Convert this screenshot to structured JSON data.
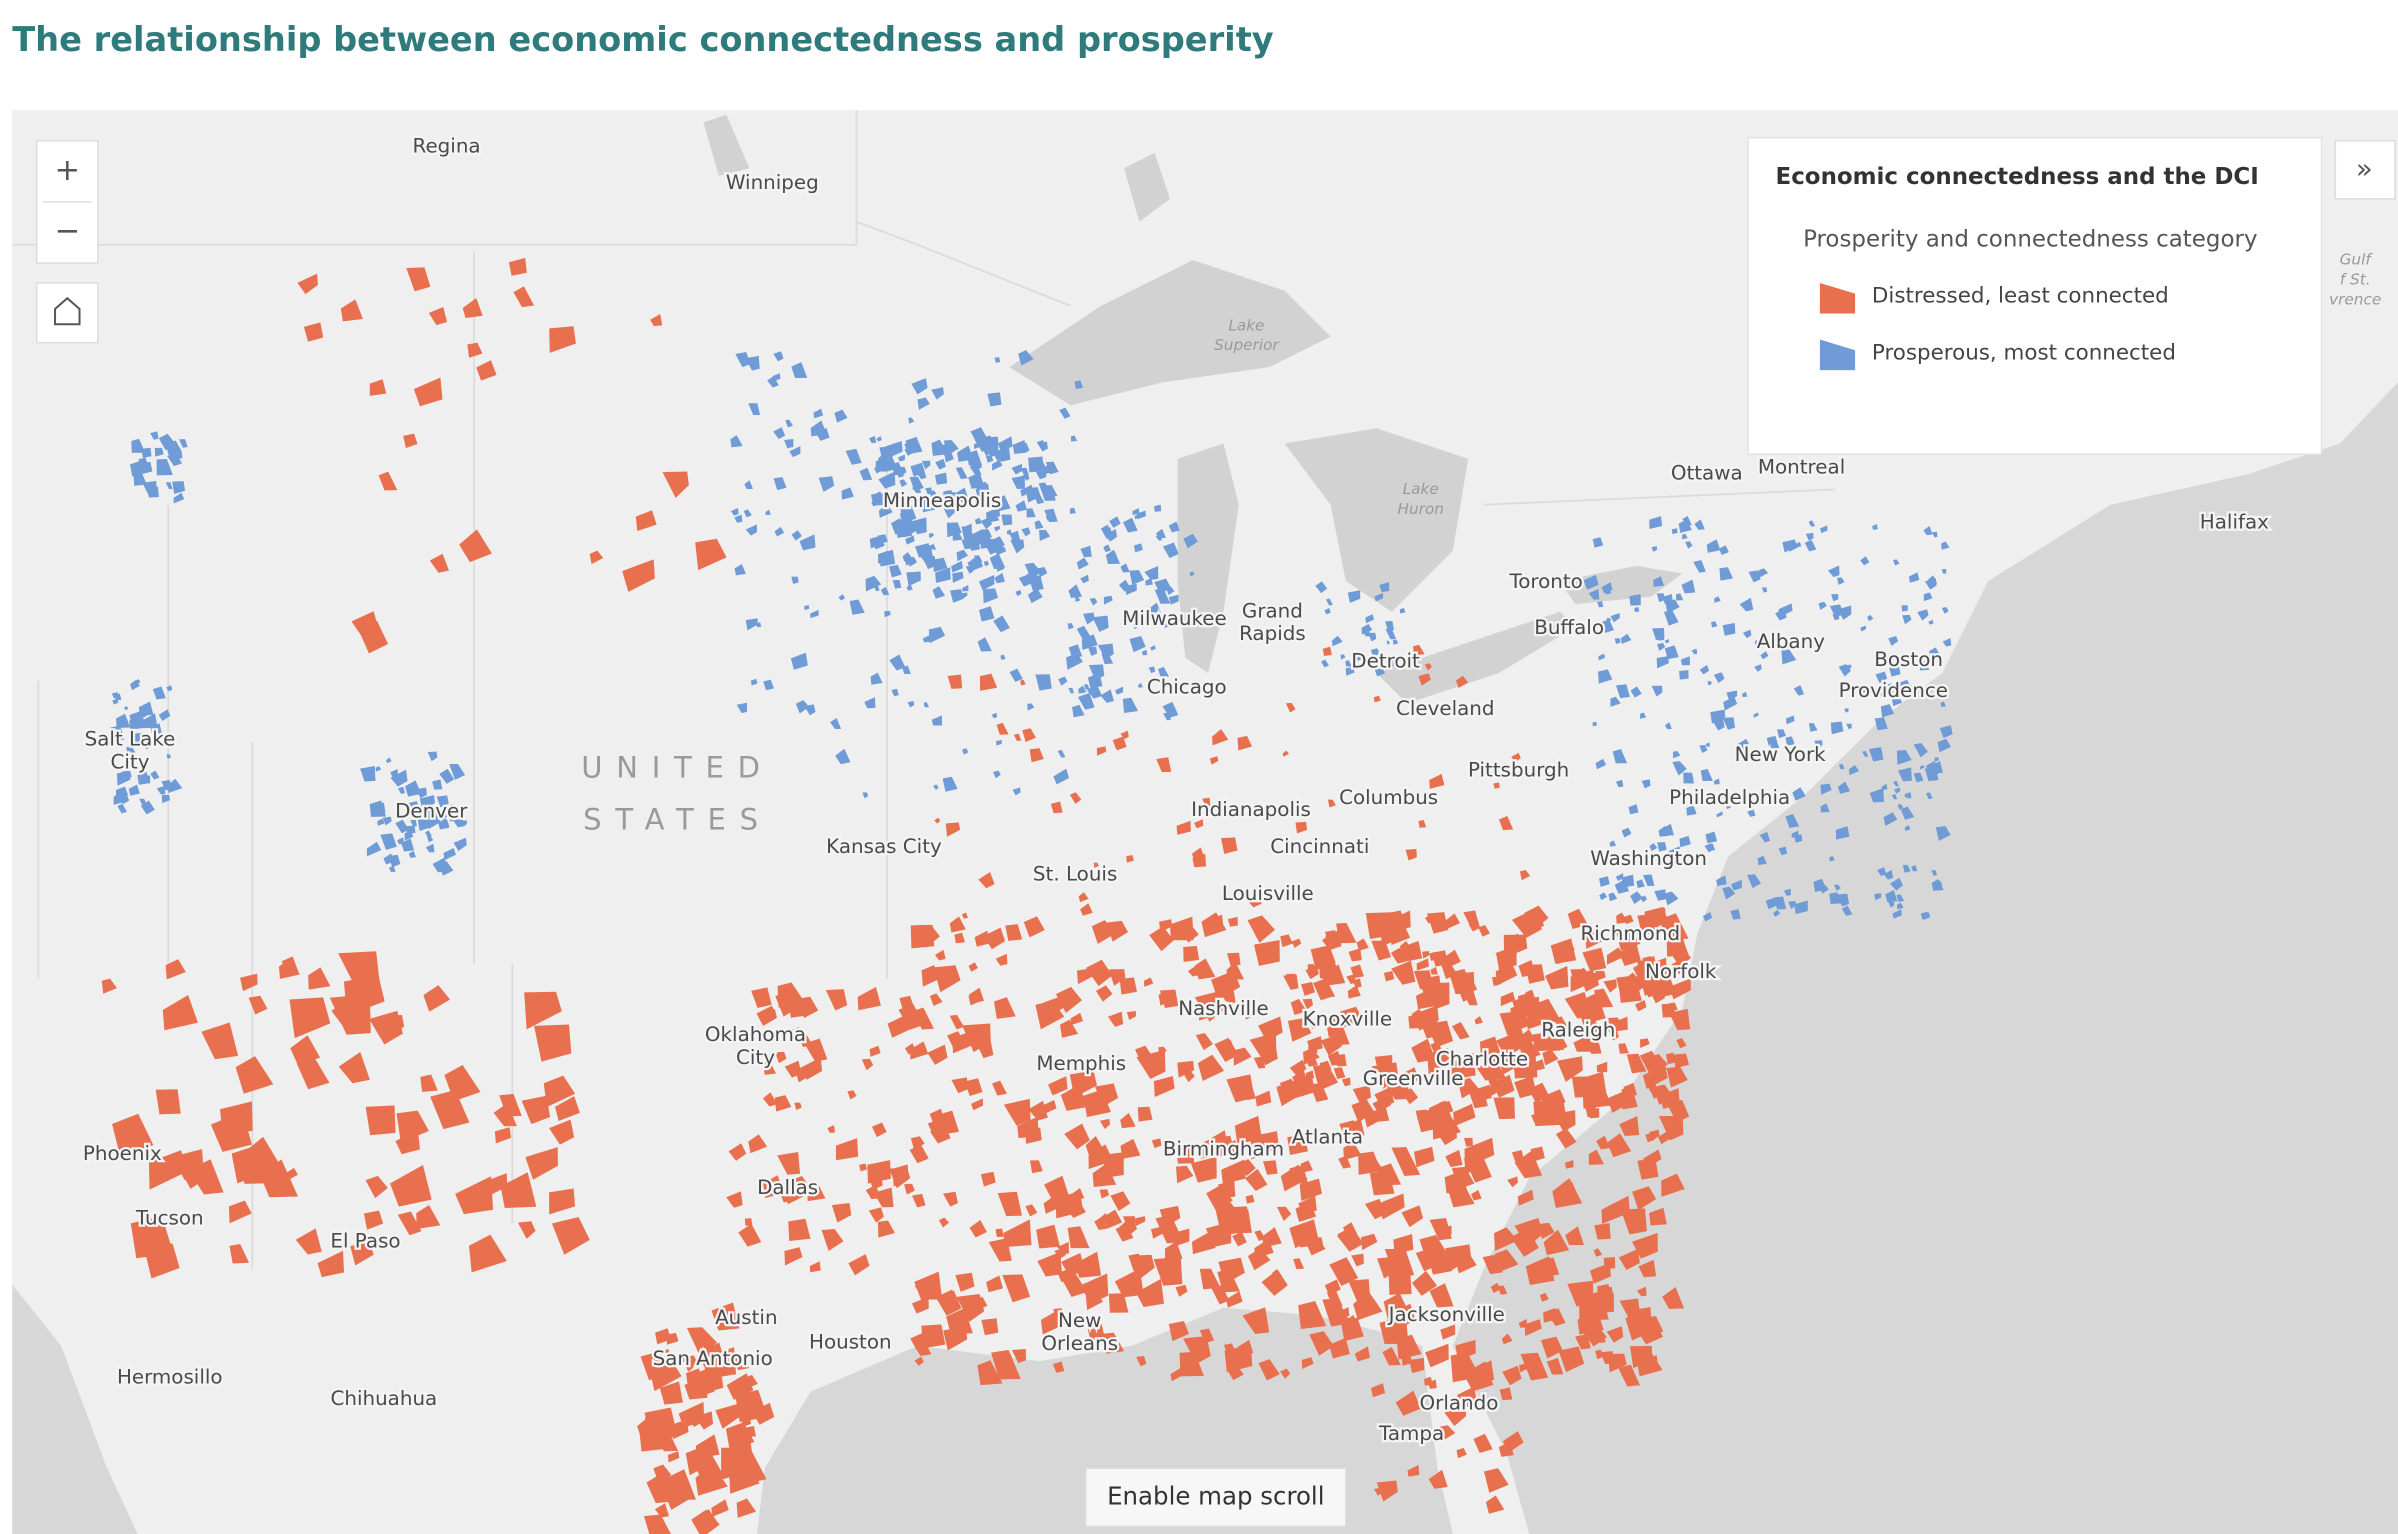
{
  "header": {
    "title": "The relationship between economic connectedness and prosperity"
  },
  "map": {
    "cities": [
      {
        "lines": [
          "Regina"
        ]
      },
      {
        "lines": [
          "Winnipeg"
        ]
      },
      {
        "lines": [
          "Minneapolis"
        ]
      },
      {
        "lines": [
          "Milwaukee"
        ]
      },
      {
        "lines": [
          "Grand",
          "Rapids"
        ]
      },
      {
        "lines": [
          "Detroit"
        ]
      },
      {
        "lines": [
          "Chicago"
        ]
      },
      {
        "lines": [
          "Toronto"
        ]
      },
      {
        "lines": [
          "Buffalo"
        ]
      },
      {
        "lines": [
          "Ottawa"
        ]
      },
      {
        "lines": [
          "Montreal"
        ]
      },
      {
        "lines": [
          "Halifax"
        ]
      },
      {
        "lines": [
          "Albany"
        ]
      },
      {
        "lines": [
          "Boston"
        ]
      },
      {
        "lines": [
          "Providence"
        ]
      },
      {
        "lines": [
          "Cleveland"
        ]
      },
      {
        "lines": [
          "Pittsburgh"
        ]
      },
      {
        "lines": [
          "New York"
        ]
      },
      {
        "lines": [
          "Philadelphia"
        ]
      },
      {
        "lines": [
          "Washington"
        ]
      },
      {
        "lines": [
          "Richmond"
        ]
      },
      {
        "lines": [
          "Norfolk"
        ]
      },
      {
        "lines": [
          "Raleigh"
        ]
      },
      {
        "lines": [
          "Charlotte"
        ]
      },
      {
        "lines": [
          "Greenville"
        ]
      },
      {
        "lines": [
          "Atlanta"
        ]
      },
      {
        "lines": [
          "Birmingham"
        ]
      },
      {
        "lines": [
          "Jacksonville"
        ]
      },
      {
        "lines": [
          "Orlando"
        ]
      },
      {
        "lines": [
          "Tampa"
        ]
      },
      {
        "lines": [
          "New",
          "Orleans"
        ]
      },
      {
        "lines": [
          "Houston"
        ]
      },
      {
        "lines": [
          "Austin"
        ]
      },
      {
        "lines": [
          "San Antonio"
        ]
      },
      {
        "lines": [
          "Dallas"
        ]
      },
      {
        "lines": [
          "Oklahoma",
          "City"
        ]
      },
      {
        "lines": [
          "Memphis"
        ]
      },
      {
        "lines": [
          "Nashville"
        ]
      },
      {
        "lines": [
          "Knoxville"
        ]
      },
      {
        "lines": [
          "Louisville"
        ]
      },
      {
        "lines": [
          "Cincinnati"
        ]
      },
      {
        "lines": [
          "Columbus"
        ]
      },
      {
        "lines": [
          "Indianapolis"
        ]
      },
      {
        "lines": [
          "St. Louis"
        ]
      },
      {
        "lines": [
          "Kansas City"
        ]
      },
      {
        "lines": [
          "Denver"
        ]
      },
      {
        "lines": [
          "Salt Lake",
          "City"
        ]
      },
      {
        "lines": [
          "Phoenix"
        ]
      },
      {
        "lines": [
          "Tucson"
        ]
      },
      {
        "lines": [
          "El Paso"
        ]
      },
      {
        "lines": [
          "Hermosillo"
        ]
      },
      {
        "lines": [
          "Chihuahua"
        ]
      }
    ],
    "water_labels": [
      {
        "lines": [
          "Lake",
          "Superior"
        ]
      },
      {
        "lines": [
          "Lake",
          "Huron"
        ]
      },
      {
        "lines": [
          "Gulf",
          "f St.",
          "vrence"
        ]
      }
    ],
    "country_label": {
      "lines": [
        "UNITED",
        "STATES"
      ]
    }
  },
  "legend": {
    "title": "Economic connectedness and the DCI",
    "subtitle": "Prosperity and connectedness category",
    "items": [
      {
        "label": "Distressed, least connected",
        "color": "#e8704f"
      },
      {
        "label": "Prosperous, most connected",
        "color": "#6f9bd6"
      }
    ]
  },
  "controls": {
    "zoom_in": "+",
    "zoom_out": "−",
    "scroll_button": "Enable map scroll",
    "expand": "»"
  }
}
